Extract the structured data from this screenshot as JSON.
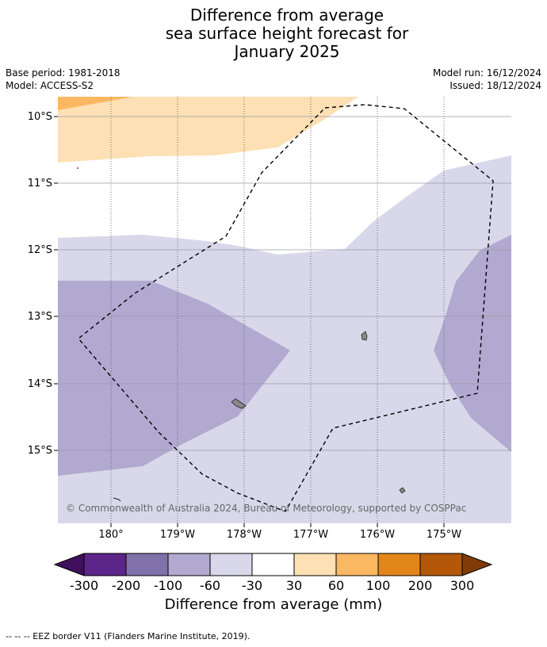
{
  "title": {
    "line1": "Difference from average",
    "line2": "sea surface height forecast for",
    "line3": "January 2025"
  },
  "meta": {
    "base_period": "Base period: 1981-2018",
    "model": "Model: ACCESS-S2",
    "model_run": "Model run: 16/12/2024",
    "issued": "Issued: 18/12/2024"
  },
  "map": {
    "lat_labels": [
      "10°S",
      "11°S",
      "12°S",
      "13°S",
      "14°S",
      "15°S"
    ],
    "lon_labels": [
      "180°",
      "179°W",
      "178°W",
      "177°W",
      "176°W",
      "175°W"
    ],
    "copyright": "© Commonwealth of Australia 2024, Bureau of Meteorology, supported by COSPPac"
  },
  "colorbar": {
    "ticks": [
      "-300",
      "-200",
      "-100",
      "-60",
      "-30",
      "30",
      "60",
      "100",
      "200",
      "300"
    ],
    "colors": [
      "#3f0f5c",
      "#5b2589",
      "#8071ab",
      "#b1a9cf",
      "#d8d8ea",
      "#ffffff",
      "#fde0b4",
      "#fbb862",
      "#e2861a",
      "#b45708",
      "#7f3b08"
    ],
    "label": "Difference from average (mm)"
  },
  "footer": "--  --  -- EEZ border V11 (Flanders Marine Institute, 2019)."
}
